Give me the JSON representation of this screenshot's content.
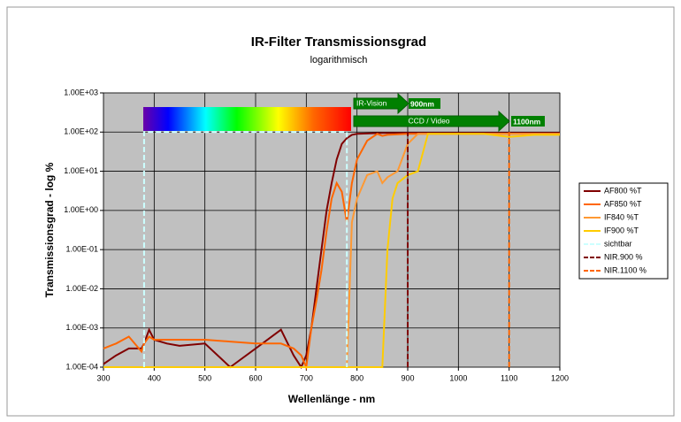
{
  "chart_data": {
    "type": "line",
    "title": "IR-Filter Transmissionsgrad",
    "subtitle": "logarithmisch",
    "x_label": "Wellenlänge - nm",
    "y_label": "Transmissionsgrad - log %",
    "xlim": [
      300,
      1200
    ],
    "xticks": [
      300,
      400,
      500,
      600,
      700,
      800,
      900,
      1000,
      1100,
      1200
    ],
    "ylim": [
      0.0001,
      1000
    ],
    "log_y": true,
    "grid": true,
    "yticks": [
      {
        "value": 0.0001,
        "label": "1.00E-04"
      },
      {
        "value": 0.001,
        "label": "1.00E-03"
      },
      {
        "value": 0.01,
        "label": "1.00E-02"
      },
      {
        "value": 0.1,
        "label": "1.00E-01"
      },
      {
        "value": 1,
        "label": "1.00E+00"
      },
      {
        "value": 10,
        "label": "1.00E+01"
      },
      {
        "value": 100,
        "label": "1.00E+02"
      },
      {
        "value": 1000,
        "label": "1.00E+03"
      }
    ],
    "legend": "right",
    "annotations": [
      "IR-Vision",
      "900nm",
      "CCD / Video",
      "1100nm"
    ],
    "series": [
      {
        "name": "AF800 %T",
        "color": "#800000",
        "dash": false,
        "x": [
          300,
          325,
          350,
          375,
          380,
          390,
          400,
          425,
          450,
          500,
          550,
          600,
          650,
          675,
          690,
          700,
          710,
          720,
          730,
          740,
          750,
          760,
          770,
          780,
          790,
          800,
          850,
          900,
          1000,
          1100,
          1200
        ],
        "values": [
          0.00012,
          0.0002,
          0.0003,
          0.0003,
          0.0004,
          0.0009,
          0.0005,
          0.0004,
          0.00035,
          0.0004,
          0.0001,
          0.0003,
          0.0009,
          0.0002,
          0.0001,
          0.0002,
          0.001,
          0.01,
          0.1,
          1,
          5,
          20,
          50,
          70,
          85,
          90,
          95,
          95,
          95,
          95,
          95
        ]
      },
      {
        "name": "AF850 %T",
        "color": "#ff6600",
        "dash": false,
        "x": [
          300,
          325,
          350,
          375,
          380,
          390,
          400,
          425,
          450,
          500,
          550,
          600,
          650,
          675,
          690,
          700,
          710,
          720,
          730,
          740,
          750,
          760,
          770,
          780,
          790,
          800,
          820,
          840,
          850,
          860,
          900,
          1000,
          1100,
          1200
        ],
        "values": [
          0.0003,
          0.0004,
          0.0006,
          0.00025,
          0.0004,
          0.0006,
          0.0005,
          0.0005,
          0.0005,
          0.0005,
          0.00045,
          0.0004,
          0.0004,
          0.0003,
          0.0002,
          0.0001,
          0.001,
          0.005,
          0.03,
          0.3,
          2,
          5,
          3,
          0.5,
          5,
          20,
          60,
          90,
          80,
          85,
          90,
          90,
          90,
          90
        ]
      },
      {
        "name": "IF840 %T",
        "color": "#ff9933",
        "dash": false,
        "x": [
          300,
          780,
          790,
          800,
          820,
          840,
          850,
          860,
          880,
          900,
          920,
          1000,
          1100,
          1200
        ],
        "values": [
          0.0001,
          0.0001,
          0.5,
          2,
          8,
          10,
          5,
          7,
          10,
          50,
          90,
          90,
          90,
          90
        ]
      },
      {
        "name": "IF900 %T",
        "color": "#ffcc00",
        "dash": false,
        "x": [
          300,
          850,
          860,
          870,
          880,
          900,
          920,
          940,
          1000,
          1050,
          1100,
          1150,
          1200
        ],
        "values": [
          0.0001,
          0.0001,
          0.1,
          2,
          5,
          8,
          10,
          90,
          90,
          90,
          75,
          85,
          85
        ]
      },
      {
        "name": "sichtbar",
        "color": "#ccffff",
        "dash": true,
        "x": [
          380,
          380,
          780,
          780
        ],
        "values": [
          0.0001,
          100,
          100,
          0.0001
        ]
      },
      {
        "name": "NIR.900 %",
        "color": "#800000",
        "dash": true,
        "x": [
          900,
          900
        ],
        "values": [
          0.0001,
          100
        ]
      },
      {
        "name": "NIR.1100 %",
        "color": "#ff6600",
        "dash": true,
        "x": [
          1100,
          1100
        ],
        "values": [
          0.0001,
          100
        ]
      }
    ]
  }
}
